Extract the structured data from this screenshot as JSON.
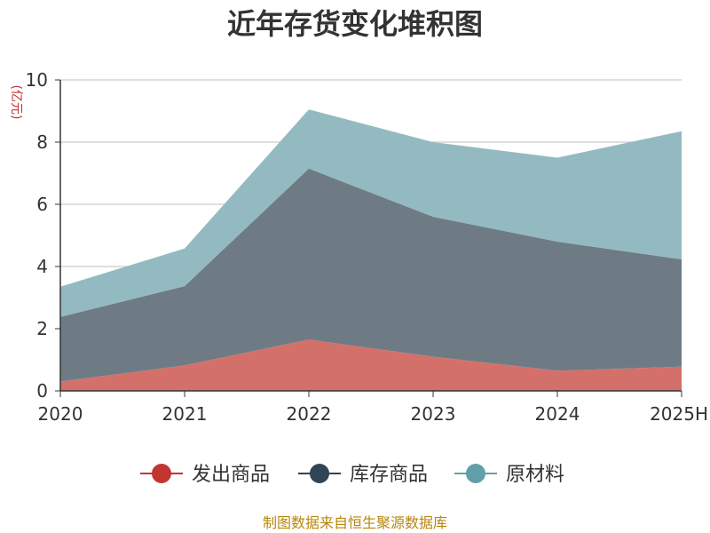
{
  "chart_data": {
    "type": "area",
    "stacked": true,
    "title": "近年存货变化堆积图",
    "ylabel": "(亿元)",
    "xlabel": "",
    "categories": [
      "2020",
      "2021",
      "2022",
      "2023",
      "2024",
      "2025H"
    ],
    "ylim": [
      0,
      10
    ],
    "yticks": [
      0,
      2,
      4,
      6,
      8,
      10
    ],
    "grid": true,
    "legend_position": "bottom",
    "series": [
      {
        "name": "发出商品",
        "values": [
          0.3,
          0.82,
          1.65,
          1.1,
          0.65,
          0.78
        ],
        "color": "#d4706a"
      },
      {
        "name": "库存商品",
        "values": [
          2.08,
          2.55,
          5.5,
          4.5,
          4.15,
          3.45
        ],
        "color": "#6e7b85"
      },
      {
        "name": "原材料",
        "values": [
          0.97,
          1.21,
          1.9,
          2.4,
          2.7,
          4.12
        ],
        "color": "#93bac1"
      }
    ],
    "legend_marker_colors": [
      "#c23531",
      "#2f4554",
      "#61a0a8"
    ],
    "source": "制图数据来自恒生聚源数据库"
  }
}
